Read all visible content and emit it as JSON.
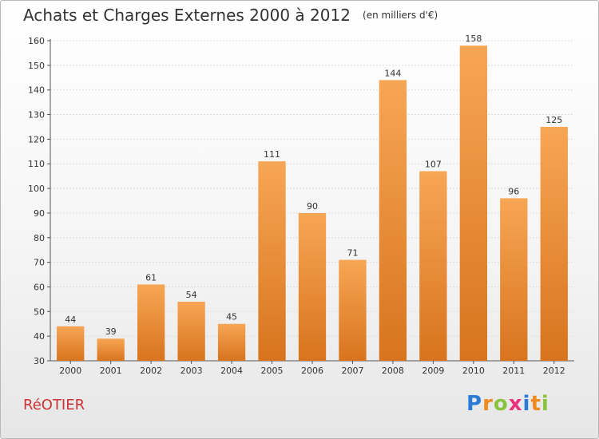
{
  "title": "Achats et Charges Externes 2000 à 2012",
  "unit": "(en milliers d'€)",
  "town": "RéOTIER",
  "brand": {
    "letters": [
      "P",
      "r",
      "o",
      "x",
      "i",
      "t",
      "i"
    ],
    "colors": [
      "#2a7bd6",
      "#f08a1c",
      "#8ac43f",
      "#e8327c",
      "#2a7bd6",
      "#f08a1c",
      "#8ac43f"
    ]
  },
  "colors": {
    "bar_top": "#f7a655",
    "bar_bottom": "#d8741d",
    "axis": "#555555",
    "grid": "#dddddd",
    "text": "#333333"
  },
  "chart_data": {
    "type": "bar",
    "categories": [
      "2000",
      "2001",
      "2002",
      "2003",
      "2004",
      "2005",
      "2006",
      "2007",
      "2008",
      "2009",
      "2010",
      "2011",
      "2012"
    ],
    "values": [
      44,
      39,
      61,
      54,
      45,
      111,
      90,
      71,
      144,
      107,
      158,
      96,
      125
    ],
    "ylim": [
      30,
      160
    ],
    "yticks": [
      30,
      40,
      50,
      60,
      70,
      80,
      90,
      100,
      110,
      120,
      130,
      140,
      150,
      160
    ],
    "title": "Achats et Charges Externes 2000 à 2012",
    "xlabel": "",
    "ylabel": "",
    "grid": true
  }
}
